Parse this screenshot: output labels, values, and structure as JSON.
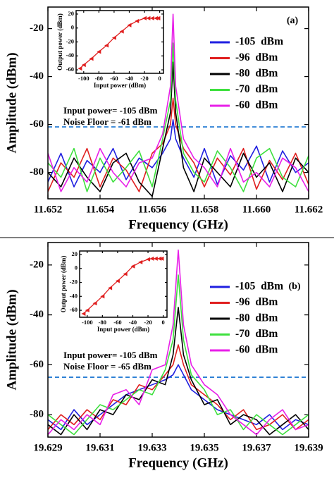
{
  "chart_data": [
    {
      "type": "line",
      "label": "(a)",
      "ylabel": "Amplitude (dBm)",
      "xlabel": "Frequency (GHz)",
      "xlim": [
        11.652,
        11.662
      ],
      "xticks": [
        11.652,
        11.654,
        11.656,
        11.658,
        {
          "value": 11.66,
          "label": "11.660"
        },
        11.662
      ],
      "ylim": [
        -91,
        -11
      ],
      "yticks": [
        -80,
        -60,
        -40,
        -20
      ],
      "legend": "right",
      "annotations": [
        "Input power= -105 dBm",
        "Noise Floor = -61 dBm"
      ],
      "reference_line": {
        "value": -61,
        "color": "#2a7fd4",
        "style": "dashed"
      },
      "x": [
        11.652,
        11.6525,
        11.653,
        11.6535,
        11.654,
        11.6545,
        11.655,
        11.6555,
        11.656,
        11.6564,
        11.6567,
        11.6568,
        11.6569,
        11.6572,
        11.6576,
        11.658,
        11.6585,
        11.659,
        11.6595,
        11.66,
        11.6605,
        11.661,
        11.6615,
        11.662
      ],
      "series": [
        {
          "name": "-105  dBm",
          "color": "#1f1fe0",
          "values": [
            -84,
            -72,
            -86,
            -75,
            -80,
            -70,
            -83,
            -74,
            -78,
            -72,
            -66,
            -58,
            -66,
            -74,
            -82,
            -70,
            -85,
            -73,
            -79,
            -69,
            -84,
            -71,
            -80,
            -76
          ]
        },
        {
          "name": "-96  dBm",
          "color": "#e01f1f",
          "values": [
            -88,
            -76,
            -82,
            -70,
            -86,
            -74,
            -79,
            -88,
            -72,
            -68,
            -60,
            -49,
            -60,
            -70,
            -76,
            -86,
            -74,
            -81,
            -70,
            -87,
            -75,
            -83,
            -72,
            -85
          ]
        },
        {
          "name": "-80  dBm",
          "color": "#000000",
          "values": [
            -80,
            -86,
            -74,
            -82,
            -88,
            -76,
            -72,
            -84,
            -90,
            -70,
            -55,
            -34,
            -55,
            -78,
            -88,
            -74,
            -80,
            -86,
            -72,
            -82,
            -76,
            -88,
            -74,
            -80
          ]
        },
        {
          "name": "-70  dBm",
          "color": "#3ee03e",
          "values": [
            -76,
            -82,
            -70,
            -88,
            -74,
            -84,
            -78,
            -71,
            -86,
            -66,
            -50,
            -26,
            -50,
            -72,
            -80,
            -84,
            -71,
            -78,
            -88,
            -74,
            -70,
            -82,
            -86,
            -73
          ]
        },
        {
          "name": "-60  dBm",
          "color": "#e81fe8",
          "values": [
            -72,
            -88,
            -78,
            -84,
            -70,
            -80,
            -86,
            -76,
            -74,
            -64,
            -44,
            -14,
            -44,
            -66,
            -74,
            -78,
            -86,
            -70,
            -84,
            -80,
            -86,
            -74,
            -78,
            -88
          ]
        }
      ]
    },
    {
      "type": "line",
      "ylabel": "Output power (dBm)",
      "xlabel": "Input power (dBm)",
      "xlim": [
        -110,
        5
      ],
      "xticks": [
        -100,
        -80,
        -60,
        -40,
        -20,
        0
      ],
      "ylim": [
        -65,
        25
      ],
      "yticks": [
        -60,
        -40,
        -20,
        0,
        20
      ],
      "marker": "triangle",
      "x": [
        -105,
        -100,
        -90,
        -80,
        -70,
        -60,
        -50,
        -40,
        -30,
        -20,
        -15,
        -10,
        -5,
        -2
      ],
      "series": [
        {
          "color": "#e01f1f",
          "values": [
            -58,
            -53,
            -44,
            -34,
            -25,
            -14,
            -5,
            4,
            10,
            14,
            14,
            14,
            14,
            14
          ]
        }
      ]
    },
    {
      "type": "line",
      "label": "(b)",
      "ylabel": "Amplitude (dBm)",
      "xlabel": "Frequency (GHz)",
      "xlim": [
        19.629,
        19.639
      ],
      "xticks": [
        19.629,
        19.631,
        19.633,
        19.635,
        19.637,
        19.639
      ],
      "ylim": [
        -89,
        -11
      ],
      "yticks": [
        -80,
        -60,
        -40,
        -20
      ],
      "legend": "right",
      "annotations": [
        "Input power= -105 dBm",
        "Noise Floor = -65 dBm"
      ],
      "reference_line": {
        "value": -65,
        "color": "#2a7fd4",
        "style": "dashed"
      },
      "x": [
        19.629,
        19.6295,
        19.63,
        19.6305,
        19.631,
        19.6315,
        19.632,
        19.6325,
        19.633,
        19.6335,
        19.6338,
        19.634,
        19.6342,
        19.6345,
        19.635,
        19.6355,
        19.636,
        19.6365,
        19.637,
        19.6375,
        19.638,
        19.6385,
        19.639
      ],
      "series": [
        {
          "name": "-105  dBm",
          "color": "#1f1fe0",
          "values": [
            -82,
            -86,
            -78,
            -84,
            -80,
            -76,
            -72,
            -70,
            -68,
            -66,
            -64,
            -60,
            -64,
            -70,
            -74,
            -78,
            -80,
            -82,
            -84,
            -80,
            -86,
            -82,
            -84
          ]
        },
        {
          "name": "-96  dBm",
          "color": "#e01f1f",
          "values": [
            -86,
            -80,
            -84,
            -78,
            -82,
            -74,
            -76,
            -68,
            -70,
            -64,
            -60,
            -52,
            -60,
            -68,
            -72,
            -76,
            -82,
            -78,
            -86,
            -84,
            -80,
            -86,
            -82
          ]
        },
        {
          "name": "-80  dBm",
          "color": "#000000",
          "values": [
            -84,
            -88,
            -80,
            -86,
            -78,
            -80,
            -72,
            -74,
            -66,
            -68,
            -56,
            -37,
            -56,
            -66,
            -76,
            -74,
            -84,
            -80,
            -82,
            -88,
            -84,
            -80,
            -86
          ]
        },
        {
          "name": "-70  dBm",
          "color": "#3ee03e",
          "values": [
            -80,
            -84,
            -88,
            -82,
            -76,
            -78,
            -74,
            -70,
            -72,
            -62,
            -50,
            -24,
            -50,
            -64,
            -70,
            -80,
            -78,
            -86,
            -80,
            -84,
            -88,
            -84,
            -80
          ]
        },
        {
          "name": "-60  dBm",
          "color": "#e81fe8",
          "values": [
            -88,
            -82,
            -86,
            -80,
            -84,
            -72,
            -70,
            -76,
            -62,
            -60,
            -44,
            -14,
            -44,
            -60,
            -68,
            -72,
            -80,
            -84,
            -88,
            -82,
            -78,
            -86,
            -84
          ]
        }
      ]
    },
    {
      "type": "line",
      "ylabel": "Output power (dBm)",
      "xlabel": "Input power (dBm)",
      "xlim": [
        -110,
        5
      ],
      "xticks": [
        -100,
        -80,
        -60,
        -40,
        -20,
        0
      ],
      "ylim": [
        -70,
        25
      ],
      "yticks": [
        -60,
        -40,
        -20,
        0,
        20
      ],
      "marker": "triangle",
      "x": [
        -105,
        -100,
        -90,
        -80,
        -70,
        -60,
        -50,
        -40,
        -30,
        -20,
        -15,
        -10,
        -5,
        -2
      ],
      "series": [
        {
          "color": "#e01f1f",
          "values": [
            -65,
            -60,
            -50,
            -40,
            -28,
            -18,
            -8,
            3,
            9,
            13,
            14,
            14,
            14,
            14
          ]
        }
      ]
    }
  ]
}
